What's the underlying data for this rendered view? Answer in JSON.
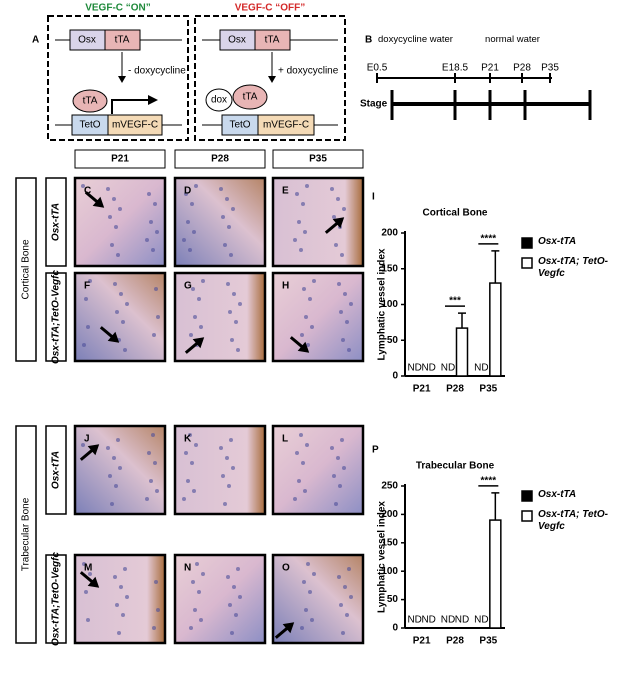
{
  "panel_A": {
    "label": "A",
    "on": {
      "title": "VEGF-C “ON”",
      "osx": "Osx",
      "tta": "tTA",
      "condition": "- doxycycline",
      "tta_protein": "tTA",
      "teto": "TetO",
      "gene": "mVEGF-C"
    },
    "off": {
      "title": "VEGF-C “OFF”",
      "osx": "Osx",
      "tta": "tTA",
      "condition": "+ doxycycline",
      "dox": "dox",
      "tta_protein": "tTA",
      "teto": "TetO",
      "gene": "mVEGF-C"
    }
  },
  "panel_B": {
    "label": "B",
    "periods": [
      "doxycycline water",
      "normal water"
    ],
    "timepoints": [
      "E0.5",
      "E18.5",
      "P21",
      "P28",
      "P35"
    ],
    "row_label": "Stage"
  },
  "micrographs": {
    "columns": [
      "P21",
      "P28",
      "P35"
    ],
    "groups": [
      {
        "name": "Cortical Bone",
        "rows": [
          {
            "genotype": "Osx-tTA",
            "panels": [
              "C",
              "D",
              "E"
            ]
          },
          {
            "genotype": "Osx-tTA;TetO-Vegfc",
            "panels": [
              "F",
              "G",
              "H"
            ]
          }
        ]
      },
      {
        "name": "Trabecular Bone",
        "rows": [
          {
            "genotype": "Osx-tTA",
            "panels": [
              "J",
              "K",
              "L"
            ]
          },
          {
            "genotype": "Osx-tTA;TetO-Vegfc",
            "panels": [
              "M",
              "N",
              "O"
            ]
          }
        ]
      }
    ]
  },
  "chart_data": [
    {
      "type": "bar",
      "label": "I",
      "title": "Cortical Bone",
      "y_label": "Lymphatic vessel index",
      "categories": [
        "P21",
        "P28",
        "P35"
      ],
      "ylim": [
        0,
        200
      ],
      "yticks": [
        0,
        50,
        100,
        150,
        200
      ],
      "series": [
        {
          "name": "Osx-tTA",
          "color": "#000000",
          "values": [
            null,
            null,
            null
          ],
          "value_labels": [
            "ND",
            "ND",
            "ND"
          ]
        },
        {
          "name": "Osx-tTA; TetO-Vegfc",
          "color": "#ffffff",
          "values": [
            null,
            67,
            130
          ],
          "value_labels": [
            "ND",
            null,
            null
          ],
          "errors": [
            null,
            21,
            45
          ]
        }
      ],
      "significance": [
        null,
        "***",
        "****"
      ]
    },
    {
      "type": "bar",
      "label": "P",
      "title": "Trabecular Bone",
      "y_label": "Lymphatic vessel index",
      "categories": [
        "P21",
        "P28",
        "P35"
      ],
      "ylim": [
        0,
        250
      ],
      "yticks": [
        0,
        50,
        100,
        150,
        200,
        250
      ],
      "series": [
        {
          "name": "Osx-tTA",
          "color": "#000000",
          "values": [
            null,
            null,
            null
          ],
          "value_labels": [
            "ND",
            "ND",
            "ND"
          ]
        },
        {
          "name": "Osx-tTA; TetO-Vegfc",
          "color": "#ffffff",
          "values": [
            null,
            null,
            190
          ],
          "value_labels": [
            "ND",
            "ND",
            null
          ],
          "errors": [
            null,
            null,
            48
          ]
        }
      ],
      "significance": [
        null,
        null,
        "****"
      ]
    }
  ]
}
